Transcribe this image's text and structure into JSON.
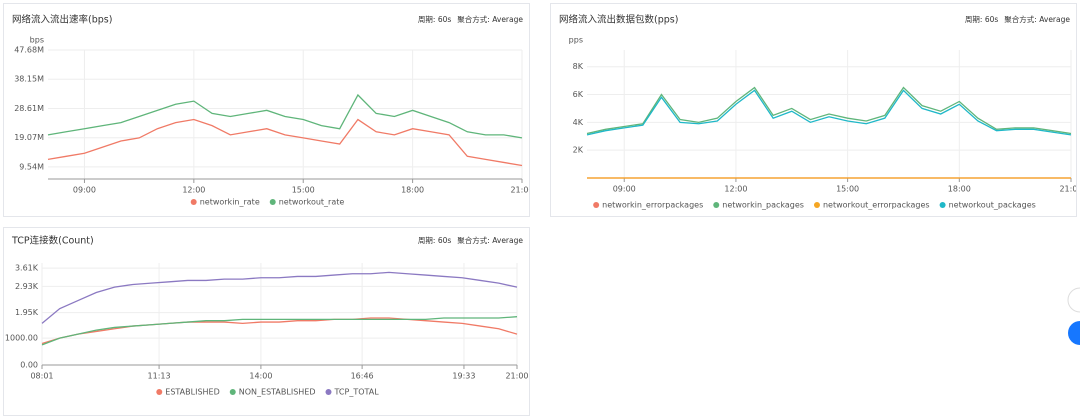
{
  "chart_data": [
    {
      "type": "line",
      "title": "网络流入流出速率(bps)",
      "period": "周期: 60s",
      "aggregation": "聚合方式: Average",
      "ylabel": "bps",
      "x": [
        "08:00",
        "08:30",
        "09:00",
        "09:30",
        "10:00",
        "10:30",
        "11:00",
        "11:30",
        "12:00",
        "12:30",
        "13:00",
        "13:30",
        "14:00",
        "14:30",
        "15:00",
        "15:30",
        "16:00",
        "16:30",
        "17:00",
        "17:30",
        "18:00",
        "18:30",
        "19:00",
        "19:30",
        "20:00",
        "20:30",
        "21:00"
      ],
      "series": [
        {
          "name": "networkin_rate",
          "color": "#f07a66",
          "values": [
            12,
            13,
            14,
            16,
            18,
            19,
            22,
            24,
            25,
            23,
            20,
            21,
            22,
            20,
            19,
            18,
            17,
            25,
            21,
            20,
            22,
            21,
            20,
            13,
            12,
            11,
            10
          ]
        },
        {
          "name": "networkout_rate",
          "color": "#5fb57a",
          "values": [
            20,
            21,
            22,
            23,
            24,
            26,
            28,
            30,
            31,
            27,
            26,
            27,
            28,
            26,
            25,
            23,
            22,
            33,
            27,
            26,
            28,
            26,
            24,
            21,
            20,
            20,
            19
          ]
        }
      ],
      "xlim": [
        "08:00",
        "21:00"
      ],
      "xticks": [
        "09:00",
        "12:00",
        "15:00",
        "18:00",
        "21:00"
      ],
      "ylim": [
        5.6,
        47.68
      ],
      "yticks": [
        {
          "value": 9.54,
          "label": "9.54M"
        },
        {
          "value": 19.07,
          "label": "19.07M"
        },
        {
          "value": 28.61,
          "label": "28.61M"
        },
        {
          "value": 38.15,
          "label": "38.15M"
        },
        {
          "value": 47.68,
          "label": "47.68M"
        }
      ],
      "grid": true
    },
    {
      "type": "line",
      "title": "网络流入流出数据包数(pps)",
      "period": "周期: 60s",
      "aggregation": "聚合方式: Average",
      "ylabel": "pps",
      "x": [
        "08:00",
        "08:30",
        "09:00",
        "09:30",
        "10:00",
        "10:30",
        "11:00",
        "11:30",
        "12:00",
        "12:30",
        "13:00",
        "13:30",
        "14:00",
        "14:30",
        "15:00",
        "15:30",
        "16:00",
        "16:30",
        "17:00",
        "17:30",
        "18:00",
        "18:30",
        "19:00",
        "19:30",
        "20:00",
        "20:30",
        "21:00"
      ],
      "series": [
        {
          "name": "networkin_errorpackages",
          "color": "#f07a66",
          "values": [
            0,
            0,
            0,
            0,
            0,
            0,
            0,
            0,
            0,
            0,
            0,
            0,
            0,
            0,
            0,
            0,
            0,
            0,
            0,
            0,
            0,
            0,
            0,
            0,
            0,
            0,
            0
          ]
        },
        {
          "name": "networkin_packages",
          "color": "#5fb57a",
          "values": [
            3200,
            3500,
            3700,
            3900,
            6000,
            4200,
            4000,
            4300,
            5500,
            6500,
            4500,
            5000,
            4200,
            4600,
            4300,
            4100,
            4500,
            6500,
            5200,
            4800,
            5500,
            4300,
            3500,
            3600,
            3600,
            3400,
            3200
          ]
        },
        {
          "name": "networkout_errorpackages",
          "color": "#f5a623",
          "values": [
            0,
            0,
            0,
            0,
            0,
            0,
            0,
            0,
            0,
            0,
            0,
            0,
            0,
            0,
            0,
            0,
            0,
            0,
            0,
            0,
            0,
            0,
            0,
            0,
            0,
            0,
            0
          ]
        },
        {
          "name": "networkout_packages",
          "color": "#1fb8c8",
          "values": [
            3100,
            3400,
            3600,
            3800,
            5800,
            4000,
            3900,
            4100,
            5300,
            6300,
            4300,
            4800,
            4000,
            4400,
            4100,
            3900,
            4300,
            6300,
            5000,
            4600,
            5300,
            4100,
            3400,
            3500,
            3500,
            3300,
            3100
          ]
        }
      ],
      "xlim": [
        "08:00",
        "21:00"
      ],
      "xticks": [
        "09:00",
        "12:00",
        "15:00",
        "18:00",
        "21:00"
      ],
      "ylim": [
        0,
        9200
      ],
      "yticks": [
        {
          "value": 2000,
          "label": "2K"
        },
        {
          "value": 4000,
          "label": "4K"
        },
        {
          "value": 6000,
          "label": "6K"
        },
        {
          "value": 8000,
          "label": "8K"
        }
      ],
      "grid": true
    },
    {
      "type": "line",
      "title": "TCP连接数(Count)",
      "period": "周期: 60s",
      "aggregation": "聚合方式: Average",
      "x": [
        "08:01",
        "08:30",
        "09:00",
        "09:30",
        "10:00",
        "10:30",
        "11:00",
        "11:30",
        "12:00",
        "12:30",
        "13:00",
        "13:30",
        "14:00",
        "14:30",
        "15:00",
        "15:30",
        "16:00",
        "16:30",
        "17:00",
        "17:30",
        "18:00",
        "18:30",
        "19:00",
        "19:30",
        "20:00",
        "20:30",
        "21:00"
      ],
      "series": [
        {
          "name": "ESTABLISHED",
          "color": "#f07a66",
          "values": [
            800,
            1000,
            1150,
            1250,
            1350,
            1450,
            1500,
            1550,
            1600,
            1600,
            1600,
            1550,
            1600,
            1600,
            1650,
            1650,
            1700,
            1700,
            1750,
            1750,
            1700,
            1650,
            1600,
            1550,
            1450,
            1350,
            1150
          ]
        },
        {
          "name": "NON_ESTABLISHED",
          "color": "#5fb57a",
          "values": [
            750,
            1000,
            1150,
            1300,
            1400,
            1450,
            1500,
            1550,
            1600,
            1650,
            1650,
            1700,
            1700,
            1700,
            1700,
            1700,
            1700,
            1700,
            1700,
            1700,
            1700,
            1700,
            1750,
            1750,
            1750,
            1750,
            1800
          ]
        },
        {
          "name": "TCP_TOTAL",
          "color": "#8b79c2",
          "values": [
            1550,
            2100,
            2400,
            2700,
            2900,
            3000,
            3050,
            3100,
            3150,
            3150,
            3200,
            3200,
            3250,
            3250,
            3300,
            3300,
            3350,
            3400,
            3400,
            3450,
            3400,
            3350,
            3300,
            3250,
            3150,
            3050,
            2900
          ]
        }
      ],
      "xlim": [
        "08:01",
        "21:00"
      ],
      "xticks": [
        "08:01",
        "11:13",
        "14:00",
        "16:46",
        "19:33",
        "21:00"
      ],
      "ylim": [
        0,
        3800
      ],
      "yticks": [
        {
          "value": 0,
          "label": "0.00"
        },
        {
          "value": 1000,
          "label": "1000.00"
        },
        {
          "value": 1950,
          "label": "1.95K"
        },
        {
          "value": 2930,
          "label": "2.93K"
        },
        {
          "value": 3610,
          "label": "3.61K"
        }
      ],
      "grid": true
    }
  ]
}
